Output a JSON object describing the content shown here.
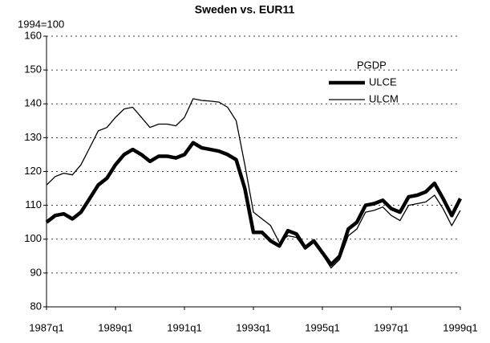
{
  "chart_data": {
    "type": "line",
    "title": "Sweden vs. EUR11",
    "ylabel": "1994=100",
    "legend_title": "PGDP",
    "legend": "upper right",
    "grid": true,
    "ylim": [
      80,
      160
    ],
    "yticks": [
      80,
      90,
      100,
      110,
      120,
      130,
      140,
      150,
      160
    ],
    "categories": [
      "1987q1",
      null,
      null,
      null,
      null,
      null,
      null,
      null,
      "1989q1",
      null,
      null,
      null,
      null,
      null,
      null,
      null,
      "1991q1",
      null,
      null,
      null,
      null,
      null,
      null,
      null,
      "1993q1",
      null,
      null,
      null,
      null,
      null,
      null,
      null,
      "1995q1",
      null,
      null,
      null,
      null,
      null,
      null,
      null,
      "1997q1",
      null,
      null,
      null,
      null,
      null,
      null,
      null,
      "1999q1"
    ],
    "series": [
      {
        "name": "ULCE",
        "color": "#000000",
        "width": 4.5,
        "values": [
          105,
          107,
          107.5,
          106,
          108,
          112,
          116,
          118,
          122,
          125,
          126.5,
          125,
          123,
          124.5,
          124.5,
          124,
          125,
          128.5,
          127,
          126.5,
          126,
          125,
          123.5,
          115,
          102,
          102,
          99.5,
          98,
          102.5,
          101.5,
          97.5,
          99.5,
          96,
          92.5,
          95,
          103,
          105,
          110,
          110.5,
          111.5,
          109,
          108,
          112.5,
          113,
          114,
          116.5,
          112,
          107,
          112
        ]
      },
      {
        "name": "ULCM",
        "color": "#000000",
        "width": 1.3,
        "values": [
          116,
          118.5,
          119.5,
          119,
          122,
          127,
          132,
          133,
          136,
          138.5,
          139,
          136,
          133,
          134,
          134,
          133.5,
          136,
          141.5,
          141,
          140.8,
          140.5,
          139,
          135,
          122,
          108,
          106,
          104,
          99,
          101,
          100.5,
          97,
          99,
          95.5,
          91.5,
          94,
          101,
          103,
          108,
          108.5,
          109.5,
          107,
          105.5,
          110,
          110.5,
          111,
          113,
          109,
          104,
          108.5
        ]
      }
    ]
  }
}
